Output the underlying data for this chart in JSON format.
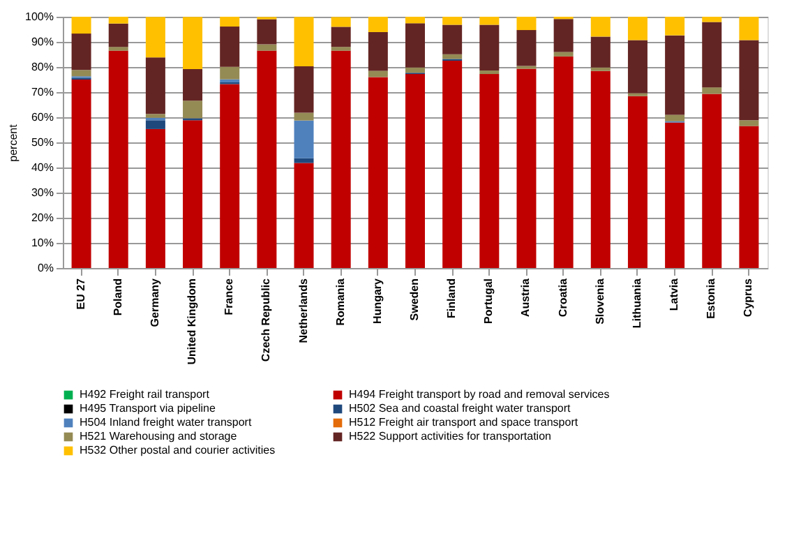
{
  "chart_data": {
    "type": "bar",
    "stacked": true,
    "ylabel": "percent",
    "categories": [
      "EU 27",
      "Poland",
      "Germany",
      "United Kingdom",
      "France",
      "Czech Republic",
      "Netherlands",
      "Romania",
      "Hungary",
      "Sweden",
      "Finland",
      "Portugal",
      "Austria",
      "Croatia",
      "Slovenia",
      "Lithuania",
      "Latvia",
      "Estonia",
      "Cyprus"
    ],
    "series": [
      {
        "name": "H492 Freight rail transport",
        "color": "#00b050",
        "values": [
          0,
          0,
          0,
          0,
          0,
          0,
          0,
          0,
          0,
          0,
          0,
          0,
          0,
          0,
          0,
          0,
          0,
          0,
          0
        ]
      },
      {
        "name": "H494 Freight transport by road and removal services",
        "color": "#c00000",
        "values": [
          75,
          86.5,
          55.3,
          58.8,
          73.2,
          86.5,
          41.8,
          86.5,
          76,
          77.2,
          82.5,
          77.2,
          79.3,
          84.2,
          78.4,
          68.4,
          57.9,
          69.3,
          56.5
        ]
      },
      {
        "name": "H495 Transport via pipeline",
        "color": "#000000",
        "values": [
          0,
          0,
          0,
          0,
          0,
          0,
          0,
          0,
          0,
          0,
          0,
          0,
          0,
          0,
          0,
          0,
          0,
          0,
          0
        ]
      },
      {
        "name": "H502 Sea and coastal freight water transport",
        "color": "#1f497d",
        "values": [
          0.7,
          0,
          3.5,
          0.8,
          0.7,
          0,
          1.9,
          0,
          0,
          0.5,
          0.7,
          0,
          0,
          0,
          0,
          0,
          0,
          0,
          0
        ]
      },
      {
        "name": "H504 Inland freight water transport",
        "color": "#4f81bd",
        "values": [
          0.6,
          0,
          1,
          0,
          1.2,
          0,
          15,
          0,
          0,
          0,
          0,
          0,
          0,
          0,
          0,
          0,
          0.5,
          0,
          0
        ]
      },
      {
        "name": "H512 Freight air transport and space transport",
        "color": "#e46c0a",
        "values": [
          0,
          0,
          0,
          0,
          0,
          0,
          0,
          0,
          0,
          0,
          0,
          0,
          0,
          0,
          0,
          0,
          0,
          0,
          0
        ]
      },
      {
        "name": "H521 Warehousing and storage",
        "color": "#948a54",
        "values": [
          2.5,
          1.5,
          1.5,
          7,
          5,
          2.5,
          3.1,
          1.5,
          2.5,
          2.1,
          1.9,
          1.4,
          1.1,
          1.8,
          1.4,
          1.2,
          2.6,
          2.6,
          2.3
        ]
      },
      {
        "name": "H522 Support activities for transportation",
        "color": "#632523",
        "values": [
          14.5,
          9.3,
          22.5,
          12.6,
          16,
          10,
          18.5,
          8,
          15.4,
          17.6,
          11.7,
          18.2,
          14.3,
          13.1,
          12.3,
          21.1,
          31.6,
          26,
          31.9
        ]
      },
      {
        "name": "H532 Other postal and courier activities",
        "color": "#ffc000",
        "values": [
          6.7,
          2.7,
          16.1,
          20.7,
          3.9,
          0.9,
          19.6,
          3.9,
          6.1,
          2.6,
          3.2,
          3.2,
          5.3,
          0.9,
          7.9,
          9.3,
          7.4,
          2.1,
          9.3
        ]
      }
    ],
    "ylim": [
      0,
      100
    ],
    "yticks": [
      {
        "value": 0,
        "label": "0%"
      },
      {
        "value": 10,
        "label": "10%"
      },
      {
        "value": 20,
        "label": "20%"
      },
      {
        "value": 30,
        "label": "30%"
      },
      {
        "value": 40,
        "label": "40%"
      },
      {
        "value": 50,
        "label": "50%"
      },
      {
        "value": 60,
        "label": "60%"
      },
      {
        "value": 70,
        "label": "70%"
      },
      {
        "value": 80,
        "label": "80%"
      },
      {
        "value": 90,
        "label": "90%"
      },
      {
        "value": 100,
        "label": "100%"
      }
    ],
    "grid": "y",
    "legend": "bottom"
  }
}
